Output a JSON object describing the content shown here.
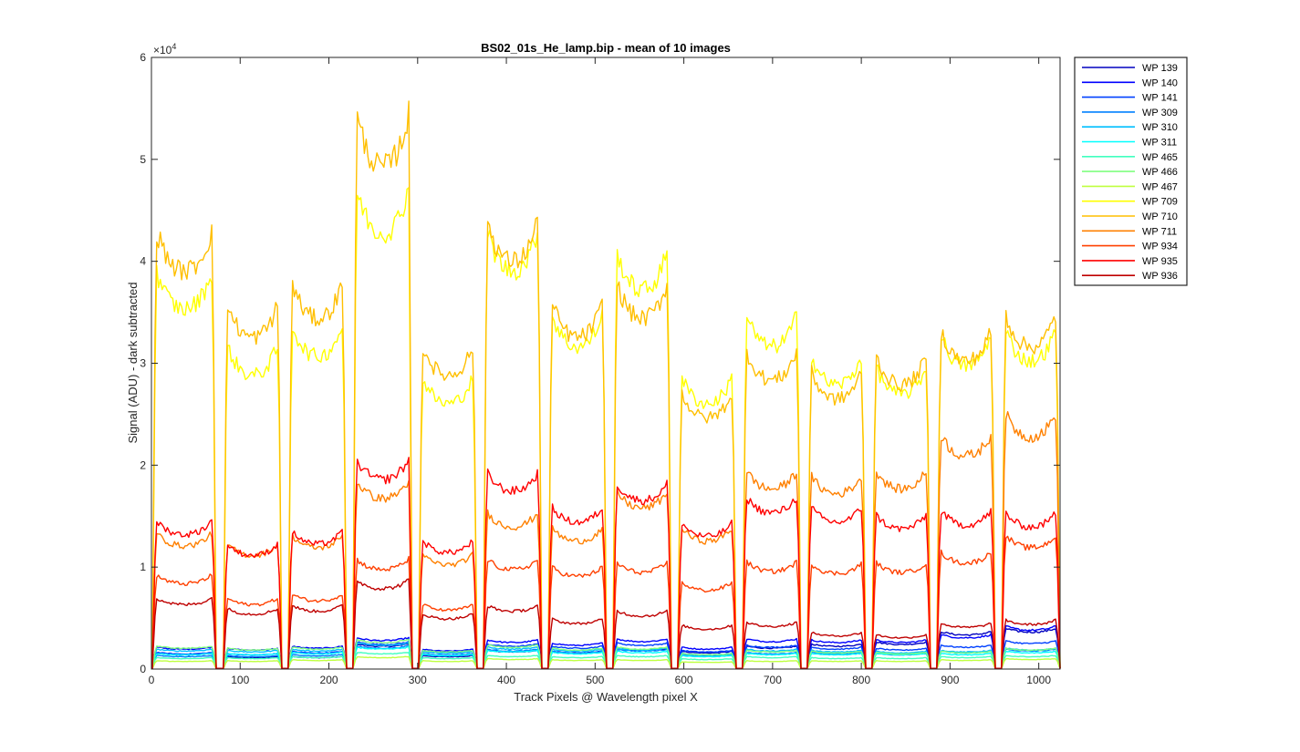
{
  "chart_data": {
    "type": "line",
    "title": "BS02_01s_He_lamp.bip - mean of 10 images",
    "xlabel": "Track Pixels @ Wavelength pixel X",
    "ylabel": "Signal (ADU) - dark subtracted",
    "y_exponent_label": "×10",
    "y_exponent_power": "4",
    "xlim": [
      0,
      1024
    ],
    "ylim": [
      0,
      60000
    ],
    "x_ticks": [
      0,
      100,
      200,
      300,
      400,
      500,
      600,
      700,
      800,
      900,
      1000
    ],
    "y_ticks": [
      0,
      10000,
      20000,
      30000,
      40000,
      50000,
      60000
    ],
    "y_tick_labels": [
      "0",
      "1",
      "2",
      "3",
      "4",
      "5",
      "6"
    ],
    "grid": false,
    "legend_position": "outside-right-top",
    "segments": [
      {
        "start": 2,
        "end": 72
      },
      {
        "start": 82,
        "end": 146
      },
      {
        "start": 155,
        "end": 219
      },
      {
        "start": 228,
        "end": 293
      },
      {
        "start": 302,
        "end": 366
      },
      {
        "start": 375,
        "end": 439
      },
      {
        "start": 448,
        "end": 512
      },
      {
        "start": 521,
        "end": 585
      },
      {
        "start": 594,
        "end": 658
      },
      {
        "start": 667,
        "end": 731
      },
      {
        "start": 740,
        "end": 804
      },
      {
        "start": 813,
        "end": 877
      },
      {
        "start": 886,
        "end": 950
      },
      {
        "start": 959,
        "end": 1023
      }
    ],
    "series": [
      {
        "name": "WP  139",
        "color": "#0000bf",
        "levels": [
          1500,
          1200,
          1200,
          2400,
          1300,
          1800,
          1700,
          2000,
          1700,
          2200,
          2400,
          2600,
          3600,
          3900
        ]
      },
      {
        "name": "WP  140",
        "color": "#0000ff",
        "levels": [
          2100,
          2000,
          2200,
          3000,
          1900,
          2800,
          2500,
          2900,
          2100,
          2900,
          2800,
          2800,
          3300,
          4100
        ]
      },
      {
        "name": "WP  141",
        "color": "#0040ff",
        "levels": [
          1600,
          1500,
          1700,
          2600,
          1700,
          2400,
          2200,
          2500,
          1800,
          2300,
          2100,
          2000,
          2300,
          2700
        ]
      },
      {
        "name": "WP  309",
        "color": "#0080ff",
        "levels": [
          1300,
          1300,
          1400,
          2200,
          1500,
          1900,
          1700,
          1900,
          1400,
          1600,
          1600,
          1500,
          1700,
          1900
        ]
      },
      {
        "name": "WP  310",
        "color": "#00bfff",
        "levels": [
          1900,
          1800,
          1900,
          2500,
          1700,
          2100,
          1900,
          2000,
          1500,
          1900,
          1800,
          1700,
          1800,
          2000
        ]
      },
      {
        "name": "WP  311",
        "color": "#00ffff",
        "levels": [
          1500,
          1500,
          1600,
          2100,
          1400,
          1800,
          1600,
          1700,
          1300,
          1500,
          1500,
          1500,
          1500,
          1700
        ]
      },
      {
        "name": "WP  465",
        "color": "#40ffbf",
        "levels": [
          1100,
          1100,
          1200,
          1600,
          1100,
          1300,
          1200,
          1300,
          1000,
          1200,
          1100,
          1100,
          1200,
          1300
        ]
      },
      {
        "name": "WP  466",
        "color": "#80ff80",
        "levels": [
          2200,
          2000,
          2100,
          2800,
          1800,
          2300,
          2000,
          2100,
          1500,
          1800,
          1700,
          1600,
          1700,
          2000
        ]
      },
      {
        "name": "WP  467",
        "color": "#bfff40",
        "levels": [
          800,
          800,
          900,
          1200,
          800,
          1000,
          900,
          900,
          700,
          800,
          800,
          800,
          900,
          1000
        ]
      },
      {
        "name": "WP  709",
        "color": "#ffff00",
        "levels": [
          38000,
          31000,
          33000,
          46000,
          28000,
          42000,
          34000,
          40000,
          28000,
          34000,
          30000,
          29000,
          32000,
          32500
        ]
      },
      {
        "name": "WP  710",
        "color": "#ffbf00",
        "levels": [
          42000,
          35000,
          37000,
          53000,
          31000,
          43000,
          35000,
          37000,
          26500,
          30500,
          28500,
          30000,
          32500,
          34000
        ]
      },
      {
        "name": "WP  711",
        "color": "#ff8000",
        "levels": [
          13000,
          12000,
          12800,
          18000,
          11000,
          15000,
          13500,
          17000,
          13500,
          19000,
          18500,
          19000,
          22500,
          24500
        ]
      },
      {
        "name": "WP  934",
        "color": "#ff4000",
        "levels": [
          9000,
          6800,
          7200,
          10500,
          6200,
          10500,
          9800,
          10200,
          8300,
          10300,
          10100,
          10200,
          11200,
          12800
        ]
      },
      {
        "name": "WP  935",
        "color": "#ff0000",
        "levels": [
          14200,
          12000,
          13200,
          20000,
          12300,
          18800,
          15500,
          17800,
          14000,
          16500,
          15500,
          14800,
          15200,
          15000
        ]
      },
      {
        "name": "WP  936",
        "color": "#bf0000",
        "levels": [
          6800,
          5800,
          6100,
          8500,
          5300,
          6100,
          4800,
          5600,
          4200,
          4500,
          3500,
          3300,
          4400,
          4700
        ]
      }
    ]
  }
}
